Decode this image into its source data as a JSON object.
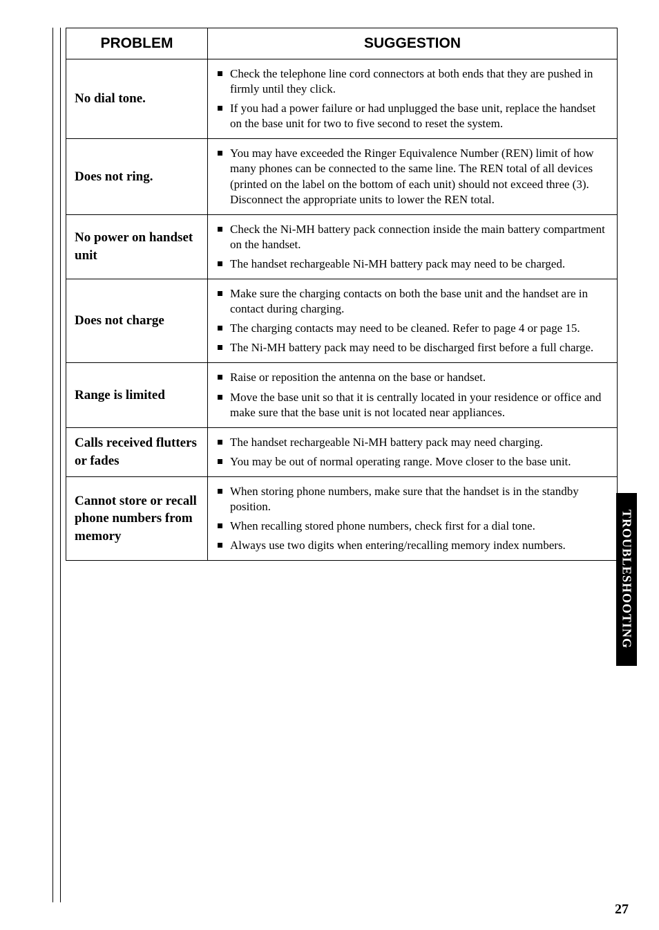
{
  "header": {
    "col1": "PROBLEM",
    "col2": "SUGGESTION"
  },
  "rows": [
    {
      "problem": "No dial tone.",
      "items": [
        "Check the telephone line cord connectors at both ends that they are pushed in firmly until they click.",
        "If you had a power failure or had unplugged the base unit, replace the handset on the base unit for two to five second to reset the system."
      ]
    },
    {
      "problem": "Does not ring.",
      "items": [
        "You may have exceeded the Ringer Equivalence Number (REN) limit of how many phones can be connected to the same line. The REN total of all devices (printed on the label on the bottom of each unit) should not exceed three (3). Disconnect the appropriate units to lower the REN total."
      ]
    },
    {
      "problem": "No power on handset unit",
      "items": [
        "Check the Ni-MH battery pack connection inside the main battery compartment on the handset.",
        "The handset rechargeable Ni-MH battery pack may need to be charged."
      ]
    },
    {
      "problem": "Does not charge",
      "items": [
        "Make sure the charging contacts on both the base unit and the handset are in contact during charging.",
        "The charging contacts may need to be cleaned. Refer to page 4 or page 15.",
        "The Ni-MH battery pack may need to be discharged first before a full charge."
      ]
    },
    {
      "problem": "Range is limited",
      "items": [
        "Raise or reposition the antenna on the base or handset.",
        "Move the base unit so that it is centrally located in your residence or office and make sure that the base unit is not located near appliances."
      ]
    },
    {
      "problem": "Calls received flutters or fades",
      "items": [
        "The handset rechargeable Ni-MH battery pack may need charging.",
        "You may be out of normal operating range. Move closer to the base unit."
      ]
    },
    {
      "problem": "Cannot store or recall phone numbers from memory",
      "items": [
        "When storing phone numbers, make sure that the handset is in the standby position.",
        "When recalling stored phone numbers, check first for a dial tone.",
        "Always use two digits when entering/recalling memory index numbers."
      ]
    }
  ],
  "sidetab": "TROUBLESHOOTING",
  "pagenum": "27"
}
